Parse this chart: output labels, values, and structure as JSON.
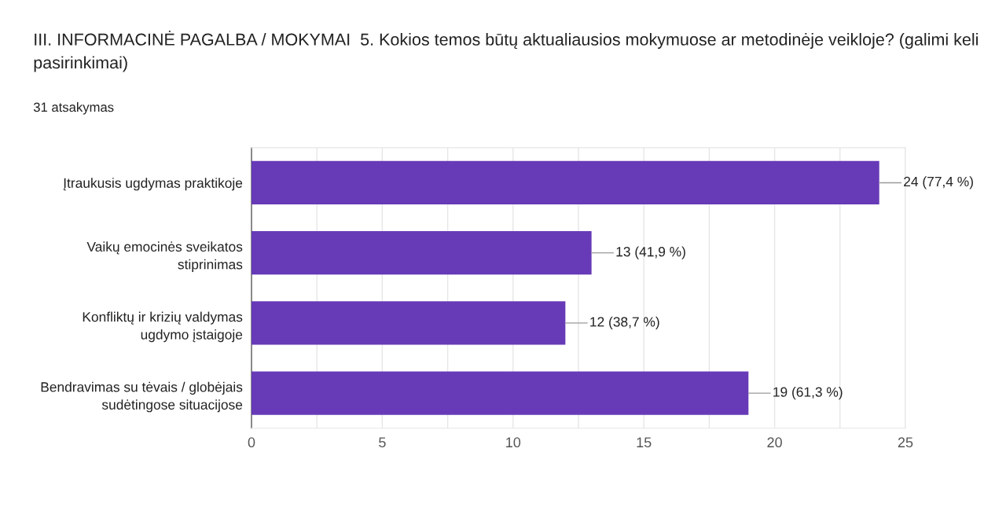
{
  "chart_data": {
    "type": "bar",
    "orientation": "horizontal",
    "title": "III. INFORMACINĖ PAGALBA / MOKYMAI  5. Kokios temos būtų aktualiausios mokymuose ar metodinėje veikloje? (galimi keli pasirinkimai)",
    "subtitle": "31 atsakymas",
    "categories": [
      "Įtraukusis ugdymas praktikoje",
      "Vaikų emocinės sveikatos stiprinimas",
      "Konfliktų ir krizių valdymas ugdymo įstaigoje",
      "Bendravimas su tėvais / globėjais sudėtingose situacijose"
    ],
    "values": [
      24,
      13,
      12,
      19
    ],
    "value_labels": [
      "24 (77,4 %)",
      "13 (41,9 %)",
      "12 (38,7 %)",
      "19 (61,3 %)"
    ],
    "color": "#673ab7",
    "xlim": [
      0,
      25
    ],
    "xticks": [
      0,
      {
        "value": 2.5,
        "label": null
      },
      5,
      {
        "value": 7.5,
        "label": null
      },
      10,
      {
        "value": 12.5,
        "label": null
      },
      15,
      {
        "value": 17.5,
        "label": null
      },
      20,
      {
        "value": 22.5,
        "label": null
      },
      25
    ],
    "grid": "x"
  }
}
